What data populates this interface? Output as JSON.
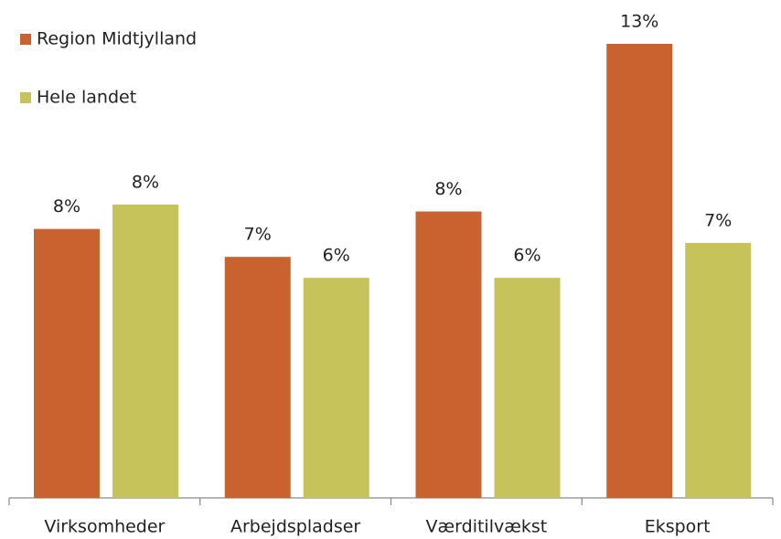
{
  "chart_data": {
    "type": "bar",
    "categories": [
      "Virksomheder",
      "Arbejdspladser",
      "Værditilvækst",
      "Eksport"
    ],
    "series": [
      {
        "name": "Region Midtjylland",
        "color": "#c9622f",
        "values": [
          7.7,
          6.9,
          8.2,
          13.0
        ],
        "value_labels": [
          "8%",
          "7%",
          "8%",
          "13%"
        ]
      },
      {
        "name": "Hele landet",
        "color": "#c6c35a",
        "values": [
          8.4,
          6.3,
          6.3,
          7.3
        ],
        "value_labels": [
          "8%",
          "6%",
          "6%",
          "7%"
        ]
      }
    ]
  }
}
